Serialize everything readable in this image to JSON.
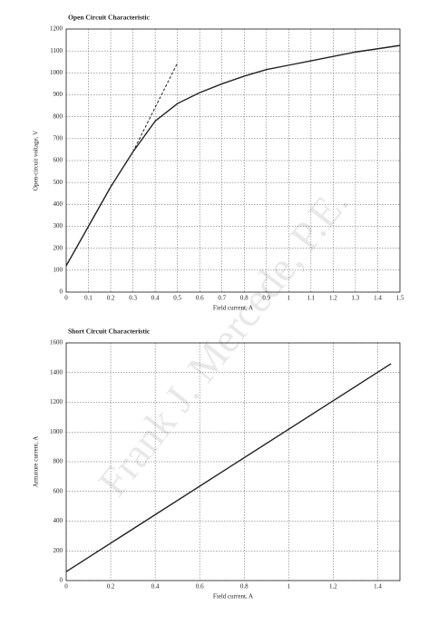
{
  "chart_data": [
    {
      "type": "line",
      "title": "Open Circuit Characteristic",
      "x_label": "Field current, A",
      "y_label": "Open-circuit voltage, V",
      "series": [
        {
          "color": "#222222",
          "style": "solid",
          "x": [
            0,
            0.1,
            0.2,
            0.3,
            0.4,
            0.5,
            0.6,
            0.7,
            0.8,
            0.9,
            1,
            1.1,
            1.2,
            1.3,
            1.4,
            1.5
          ],
          "values": [
            120,
            300,
            480,
            640,
            780,
            860,
            910,
            950,
            985,
            1015,
            1035,
            1055,
            1075,
            1095,
            1110,
            1125
          ]
        },
        {
          "color": "#222222",
          "style": "dashed",
          "x": [
            0.3,
            0.5
          ],
          "values": [
            640,
            1045
          ]
        }
      ],
      "xlim": [
        0,
        1.5
      ],
      "xticks": [
        0,
        0.1,
        0.2,
        0.3,
        0.4,
        0.5,
        0.6,
        0.7,
        0.8,
        0.9,
        1,
        1.1,
        1.2,
        1.3,
        1.4,
        1.5
      ],
      "ylim": [
        0,
        1200
      ],
      "yticks": [
        0,
        100,
        200,
        300,
        400,
        500,
        600,
        700,
        800,
        900,
        1000,
        1100,
        1200
      ],
      "grid": true
    },
    {
      "type": "line",
      "title": "Short Circuit Characteristic",
      "x_label": "Field current, A",
      "y_label": "Armature current, A",
      "series": [
        {
          "color": "#222222",
          "style": "solid",
          "x": [
            0,
            1.46
          ],
          "values": [
            60,
            1460
          ]
        }
      ],
      "xlim": [
        0,
        1.5
      ],
      "xticks": [
        0,
        0.2,
        0.4,
        0.6,
        0.8,
        1,
        1.2,
        1.4
      ],
      "ylim": [
        0,
        1600
      ],
      "yticks": [
        0,
        200,
        400,
        600,
        800,
        1000,
        1200,
        1400,
        1600
      ],
      "grid": true
    }
  ],
  "watermark": "Frank J. Mercede, P.E."
}
